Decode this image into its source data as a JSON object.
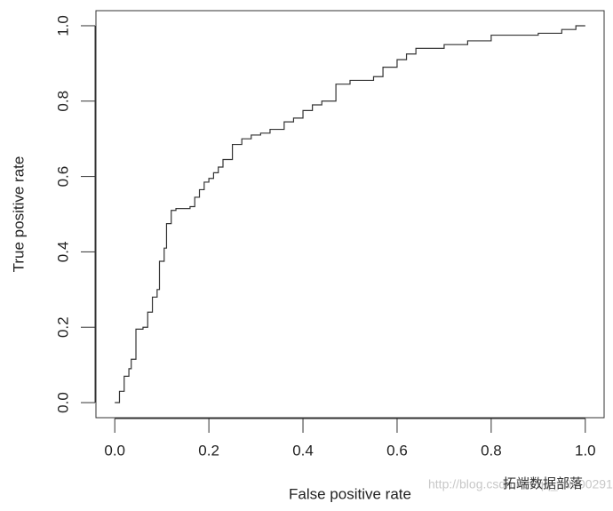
{
  "chart_data": {
    "type": "line",
    "x_label": "False positive rate",
    "y_label": "True positive rate",
    "x": [
      0,
      0.01,
      0.01,
      0.02,
      0.02,
      0.03,
      0.03,
      0.035,
      0.035,
      0.045,
      0.045,
      0.06,
      0.06,
      0.07,
      0.07,
      0.08,
      0.08,
      0.09,
      0.09,
      0.095,
      0.095,
      0.105,
      0.105,
      0.11,
      0.11,
      0.12,
      0.12,
      0.13,
      0.13,
      0.16,
      0.16,
      0.17,
      0.17,
      0.18,
      0.18,
      0.19,
      0.19,
      0.2,
      0.2,
      0.21,
      0.21,
      0.22,
      0.22,
      0.23,
      0.23,
      0.25,
      0.25,
      0.27,
      0.27,
      0.29,
      0.29,
      0.31,
      0.31,
      0.33,
      0.33,
      0.36,
      0.36,
      0.38,
      0.38,
      0.4,
      0.4,
      0.42,
      0.42,
      0.44,
      0.44,
      0.47,
      0.47,
      0.5,
      0.5,
      0.55,
      0.55,
      0.57,
      0.57,
      0.6,
      0.6,
      0.62,
      0.62,
      0.64,
      0.64,
      0.7,
      0.7,
      0.75,
      0.75,
      0.8,
      0.8,
      0.9,
      0.9,
      0.95,
      0.95,
      0.98,
      0.98,
      1.0
    ],
    "series": [
      {
        "color": "#333333",
        "values": [
          0,
          0,
          0.03,
          0.03,
          0.07,
          0.07,
          0.09,
          0.09,
          0.115,
          0.115,
          0.195,
          0.195,
          0.2,
          0.2,
          0.24,
          0.24,
          0.28,
          0.28,
          0.3,
          0.3,
          0.375,
          0.375,
          0.41,
          0.41,
          0.475,
          0.475,
          0.51,
          0.51,
          0.515,
          0.515,
          0.52,
          0.52,
          0.545,
          0.545,
          0.565,
          0.565,
          0.585,
          0.585,
          0.595,
          0.595,
          0.61,
          0.61,
          0.625,
          0.625,
          0.645,
          0.645,
          0.685,
          0.685,
          0.7,
          0.7,
          0.71,
          0.71,
          0.715,
          0.715,
          0.725,
          0.725,
          0.745,
          0.745,
          0.755,
          0.755,
          0.775,
          0.775,
          0.79,
          0.79,
          0.8,
          0.8,
          0.845,
          0.845,
          0.855,
          0.855,
          0.865,
          0.865,
          0.89,
          0.89,
          0.91,
          0.91,
          0.925,
          0.925,
          0.94,
          0.94,
          0.95,
          0.95,
          0.96,
          0.96,
          0.975,
          0.975,
          0.98,
          0.98,
          0.99,
          0.99,
          1.0,
          1.0
        ]
      }
    ],
    "xlim": [
      -0.04,
      1.04
    ],
    "ylim": [
      -0.04,
      1.04
    ],
    "xticks": [
      {
        "value": 0,
        "label": "0.0"
      },
      0.2,
      0.4,
      0.6,
      0.8,
      {
        "value": 1,
        "label": "1.0"
      }
    ],
    "yticks": [
      {
        "value": 0,
        "label": "0.0"
      },
      0.2,
      0.4,
      0.6,
      0.8,
      {
        "value": 1,
        "label": "1.0"
      }
    ],
    "annotations": [
      "http://blog.csdn.net/qq_19600291",
      "拓端数据部落"
    ]
  }
}
